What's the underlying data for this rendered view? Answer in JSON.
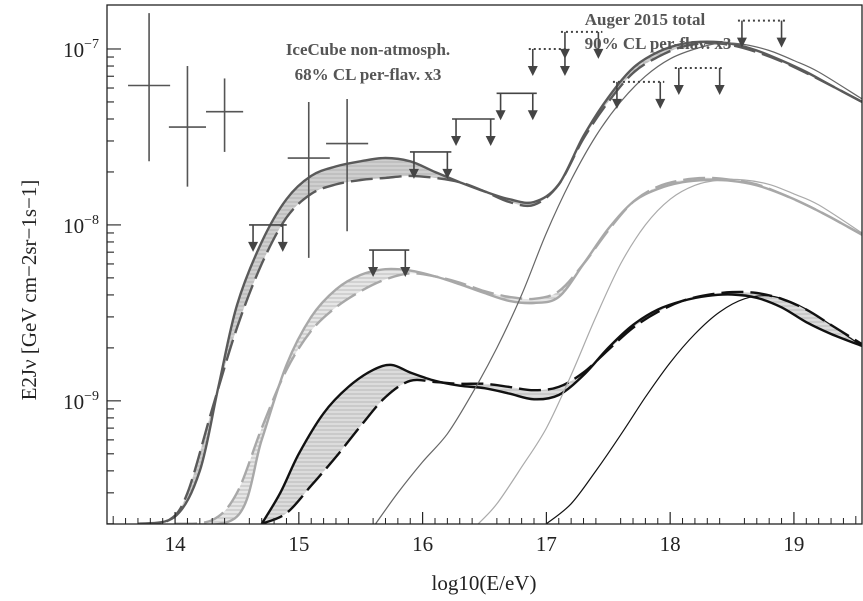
{
  "chart_data": {
    "type": "line",
    "xlabel": "log10(E/eV)",
    "ylabel": "E2Jν [GeV cm−2sr−1s−1]",
    "x_ticks": [
      "14",
      "15",
      "16",
      "17",
      "18",
      "19"
    ],
    "y_ticks": [
      "10−9",
      "10−8",
      "10−7"
    ],
    "xlim": [
      13.45,
      19.55
    ],
    "ylim_log10": [
      -9.7,
      -6.75
    ],
    "log_y": true,
    "annotations": {
      "icecube": [
        "IceCube non-atmosph.",
        "68% CL per-flav. x3"
      ],
      "auger": [
        "Auger 2015 total",
        "90% CL per-flav. x3"
      ]
    },
    "icecube_points": [
      {
        "x": 13.79,
        "xerr": 0.17,
        "y": 6.2e-08,
        "ylo": 2.3e-08,
        "yhi": 1.6e-07
      },
      {
        "x": 14.1,
        "xerr": 0.15,
        "y": 3.6e-08,
        "ylo": 1.65e-08,
        "yhi": 8e-08
      },
      {
        "x": 14.4,
        "xerr": 0.15,
        "y": 4.4e-08,
        "ylo": 2.6e-08,
        "yhi": 6.8e-08
      },
      {
        "x": 15.08,
        "xerr": 0.17,
        "y": 2.4e-08,
        "ylo": 6.5e-09,
        "yhi": 5e-08
      },
      {
        "x": 15.39,
        "xerr": 0.17,
        "y": 2.9e-08,
        "ylo": 9.2e-09,
        "yhi": 5.2e-08
      }
    ],
    "icecube_upper_limits": [
      {
        "x0": 14.63,
        "x1": 14.87,
        "y": 1e-08
      },
      {
        "x0": 15.6,
        "x1": 15.86,
        "y": 7.2e-09
      },
      {
        "x0": 15.93,
        "x1": 16.2,
        "y": 2.6e-08
      },
      {
        "x0": 16.27,
        "x1": 16.55,
        "y": 4e-08
      },
      {
        "x0": 16.63,
        "x1": 16.89,
        "y": 5.6e-08
      }
    ],
    "auger_upper_limits": [
      {
        "x0": 16.89,
        "x1": 17.15,
        "y": 1e-07
      },
      {
        "x0": 17.15,
        "x1": 17.42,
        "y": 1.25e-07
      },
      {
        "x0": 17.57,
        "x1": 17.92,
        "y": 6.5e-08
      },
      {
        "x0": 18.07,
        "x1": 18.4,
        "y": 7.8e-08
      },
      {
        "x0": 18.58,
        "x1": 18.9,
        "y": 1.45e-07
      }
    ],
    "series": [
      {
        "group": "top",
        "style": "dashed",
        "color": "#5a5a5a",
        "x": [
          13.7,
          13.95,
          14.1,
          14.3,
          14.5,
          14.7,
          14.9,
          15.1,
          15.3,
          15.5,
          15.7,
          15.9,
          16.1,
          16.3,
          16.5,
          16.7,
          16.9,
          17.1,
          17.3,
          17.5,
          17.7,
          17.9,
          18.1,
          18.3,
          18.5,
          18.7,
          18.9,
          19.1,
          19.3,
          19.55
        ],
        "y": [
          2e-10,
          2.1e-10,
          3e-10,
          9e-10,
          2.6e-09,
          6e-09,
          1.1e-08,
          1.5e-08,
          1.7e-08,
          1.8e-08,
          1.85e-08,
          1.9e-08,
          1.85e-08,
          1.75e-08,
          1.55e-08,
          1.35e-08,
          1.3e-08,
          1.7e-08,
          3.1e-08,
          5e-08,
          7.3e-08,
          9e-08,
          1.03e-07,
          1.08e-07,
          1.05e-07,
          9.6e-08,
          8.5e-08,
          7.3e-08,
          6.2e-08,
          5e-08
        ]
      },
      {
        "group": "top",
        "style": "solid",
        "color": "#5a5a5a",
        "x": [
          13.7,
          14.0,
          14.2,
          14.35,
          14.5,
          14.7,
          14.9,
          15.1,
          15.3,
          15.5,
          15.7,
          15.9,
          16.1,
          16.3,
          16.5,
          16.7,
          16.9,
          17.1,
          17.3,
          17.5,
          17.7,
          17.9,
          18.1,
          18.3,
          18.5,
          18.7,
          18.9,
          19.1,
          19.3,
          19.55
        ],
        "y": [
          2e-10,
          2.2e-10,
          4e-10,
          1.2e-09,
          3.5e-09,
          8e-09,
          1.4e-08,
          1.9e-08,
          2.15e-08,
          2.3e-08,
          2.4e-08,
          2.3e-08,
          2e-08,
          1.75e-08,
          1.55e-08,
          1.4e-08,
          1.35e-08,
          1.7e-08,
          3.2e-08,
          5.3e-08,
          7.8e-08,
          9.6e-08,
          1.07e-07,
          1.1e-07,
          1.07e-07,
          9.8e-08,
          8.6e-08,
          7.4e-08,
          6.2e-08,
          5e-08
        ]
      },
      {
        "group": "middle",
        "style": "dashed",
        "color": "#a8a8a8",
        "x": [
          14.0,
          14.3,
          14.5,
          14.7,
          14.9,
          15.1,
          15.3,
          15.5,
          15.7,
          15.9,
          16.1,
          16.3,
          16.5,
          16.7,
          16.9,
          17.1,
          17.3,
          17.5,
          17.7,
          17.9,
          18.1,
          18.3,
          18.5,
          18.7,
          18.9,
          19.1,
          19.3,
          19.55
        ],
        "y": [
          2e-10,
          2.1e-10,
          3e-10,
          7e-10,
          1.5e-09,
          2.5e-09,
          3.4e-09,
          4.2e-09,
          4.9e-09,
          5.3e-09,
          5.1e-09,
          4.7e-09,
          4.2e-09,
          3.9e-09,
          3.8e-09,
          4.2e-09,
          6e-09,
          9.3e-09,
          1.35e-08,
          1.65e-08,
          1.8e-08,
          1.85e-08,
          1.8e-08,
          1.7e-08,
          1.5e-08,
          1.3e-08,
          1.1e-08,
          8.8e-09
        ]
      },
      {
        "group": "middle",
        "style": "solid",
        "color": "#a8a8a8",
        "x": [
          14.0,
          14.5,
          14.7,
          14.9,
          15.1,
          15.3,
          15.5,
          15.7,
          15.9,
          16.1,
          16.3,
          16.5,
          16.7,
          16.9,
          17.1,
          17.3,
          17.5,
          17.7,
          17.9,
          18.1,
          18.3,
          18.5,
          18.7,
          18.9,
          19.1,
          19.3,
          19.55
        ],
        "y": [
          2e-10,
          2.2e-10,
          6e-10,
          1.6e-09,
          3e-09,
          4.3e-09,
          5.2e-09,
          5.6e-09,
          5.5e-09,
          5.1e-09,
          4.6e-09,
          4.1e-09,
          3.7e-09,
          3.6e-09,
          3.9e-09,
          6e-09,
          9.5e-09,
          1.35e-08,
          1.6e-08,
          1.75e-08,
          1.8e-08,
          1.78e-08,
          1.68e-08,
          1.5e-08,
          1.3e-08,
          1.1e-08,
          8.8e-09
        ]
      },
      {
        "group": "bottom",
        "style": "dashed",
        "color": "#111111",
        "x": [
          14.7,
          14.9,
          15.1,
          15.3,
          15.5,
          15.7,
          15.9,
          16.1,
          16.3,
          16.5,
          16.7,
          16.9,
          17.1,
          17.3,
          17.5,
          17.7,
          17.9,
          18.1,
          18.3,
          18.5,
          18.7,
          18.9,
          19.1,
          19.3,
          19.55
        ],
        "y": [
          2e-10,
          2.3e-10,
          3.3e-10,
          4.8e-10,
          7.2e-10,
          1.05e-09,
          1.3e-09,
          1.28e-09,
          1.25e-09,
          1.25e-09,
          1.2e-09,
          1.15e-09,
          1.2e-09,
          1.45e-09,
          1.95e-09,
          2.6e-09,
          3.2e-09,
          3.7e-09,
          4e-09,
          4.15e-09,
          4.1e-09,
          3.8e-09,
          3.3e-09,
          2.7e-09,
          2.1e-09
        ]
      },
      {
        "group": "bottom",
        "style": "solid",
        "color": "#111111",
        "x": [
          14.7,
          14.85,
          15.0,
          15.2,
          15.4,
          15.6,
          15.75,
          15.9,
          16.1,
          16.3,
          16.5,
          16.7,
          16.9,
          17.1,
          17.3,
          17.5,
          17.7,
          17.9,
          18.1,
          18.3,
          18.5,
          18.7,
          18.9,
          19.1,
          19.3,
          19.55
        ],
        "y": [
          2e-10,
          3e-10,
          5e-10,
          8.5e-10,
          1.2e-09,
          1.5e-09,
          1.6e-09,
          1.45e-09,
          1.3e-09,
          1.22e-09,
          1.18e-09,
          1.1e-09,
          1.02e-09,
          1.08e-09,
          1.4e-09,
          2e-09,
          2.7e-09,
          3.3e-09,
          3.7e-09,
          3.95e-09,
          4.02e-09,
          3.85e-09,
          3.4e-09,
          2.8e-09,
          2.4e-09,
          2.05e-09
        ]
      },
      {
        "group": "thin",
        "style": "solid",
        "color": "#666666",
        "x": [
          15.62,
          15.8,
          16.0,
          16.2,
          16.4,
          16.6,
          16.8,
          17.0,
          17.2,
          17.4,
          17.6,
          17.8,
          18.0,
          18.2,
          18.4,
          18.6,
          18.8,
          19.0,
          19.2,
          19.55
        ],
        "y": [
          2e-10,
          3e-10,
          4.5e-10,
          6.5e-10,
          1.1e-09,
          2e-09,
          4e-09,
          9e-09,
          1.8e-08,
          3.2e-08,
          5e-08,
          7e-08,
          8.8e-08,
          1e-07,
          1.08e-07,
          1.06e-07,
          9.8e-08,
          8.6e-08,
          7.4e-08,
          5.2e-08
        ]
      },
      {
        "group": "thin",
        "style": "solid",
        "color": "#aaaaaa",
        "x": [
          16.45,
          16.6,
          16.8,
          17.0,
          17.2,
          17.4,
          17.6,
          17.8,
          18.0,
          18.2,
          18.4,
          18.6,
          18.8,
          19.0,
          19.2,
          19.55
        ],
        "y": [
          2e-10,
          2.6e-10,
          4.2e-10,
          7e-10,
          1.4e-09,
          3e-09,
          6e-09,
          1e-08,
          1.4e-08,
          1.68e-08,
          1.8e-08,
          1.8e-08,
          1.7e-08,
          1.5e-08,
          1.3e-08,
          9e-09
        ]
      },
      {
        "group": "thin",
        "style": "solid",
        "color": "#111111",
        "x": [
          17.0,
          17.2,
          17.4,
          17.6,
          17.8,
          18.0,
          18.2,
          18.4,
          18.6,
          18.8,
          19.0,
          19.2,
          19.55
        ],
        "y": [
          2e-10,
          2.6e-10,
          4e-10,
          6.4e-10,
          1.05e-09,
          1.65e-09,
          2.4e-09,
          3.2e-09,
          3.8e-09,
          3.95e-09,
          3.6e-09,
          3e-09,
          2.05e-09
        ]
      }
    ],
    "bands": [
      {
        "upper_series": 1,
        "lower_series": 0,
        "fill": "#cfcfcf"
      },
      {
        "upper_series": 3,
        "lower_series": 2,
        "fill": "#e6e6e6"
      },
      {
        "upper_series": 5,
        "lower_series": 4,
        "fill": "#dcdcdc"
      }
    ]
  }
}
